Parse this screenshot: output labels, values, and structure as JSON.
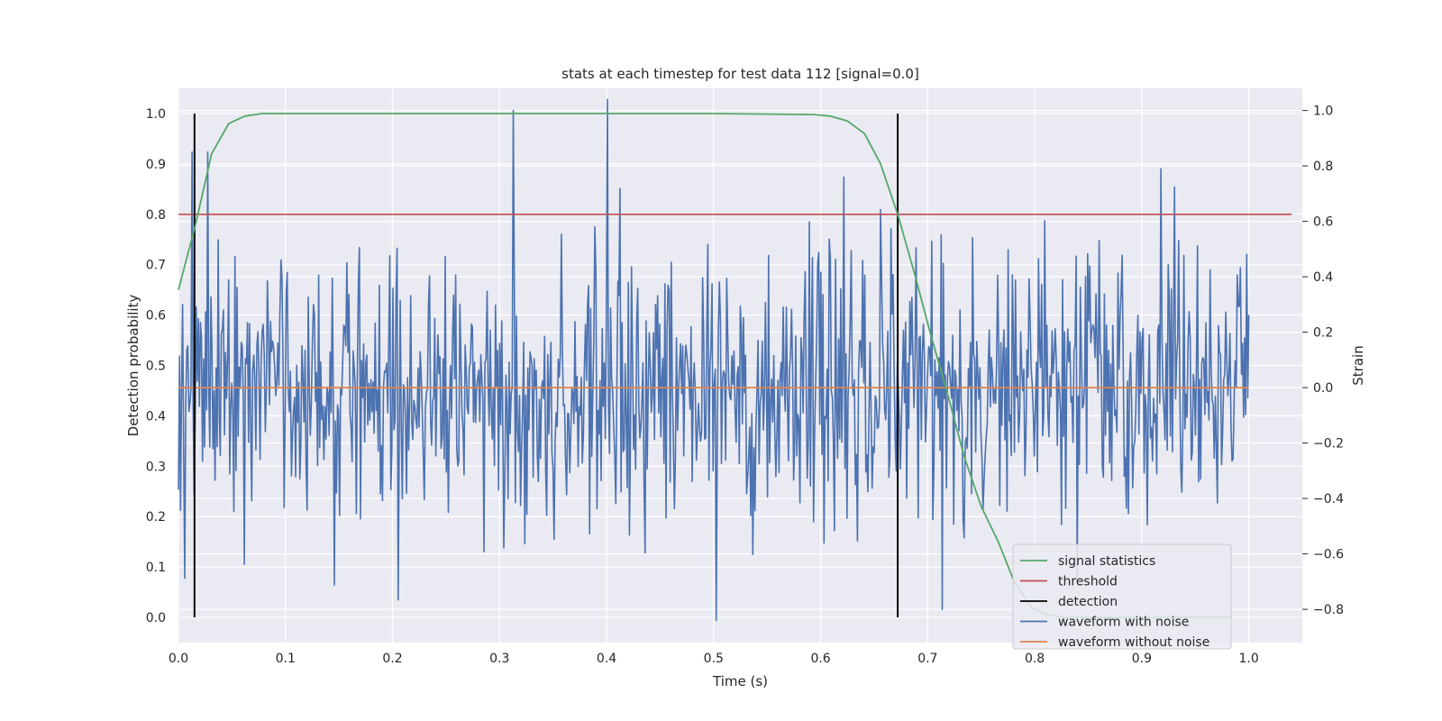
{
  "chart_data": {
    "type": "line",
    "title": "stats at each timestep for test data 112 [signal=0.0]",
    "xlabel": "Time (s)",
    "ylabel": "Detection probability",
    "ylabel_right": "Strain",
    "xlim": [
      0.0,
      1.05
    ],
    "ylim": [
      -0.05,
      1.05
    ],
    "ylim_right": [
      -0.92,
      1.08
    ],
    "x_ticks": [
      "0.0",
      "0.1",
      "0.2",
      "0.3",
      "0.4",
      "0.5",
      "0.6",
      "0.7",
      "0.8",
      "0.9",
      "1.0"
    ],
    "x_tick_values": [
      0.0,
      0.1,
      0.2,
      0.3,
      0.4,
      0.5,
      0.6,
      0.7,
      0.8,
      0.9,
      1.0
    ],
    "y_ticks": [
      "0.0",
      "0.1",
      "0.2",
      "0.3",
      "0.4",
      "0.5",
      "0.6",
      "0.7",
      "0.8",
      "0.9",
      "1.0"
    ],
    "y_tick_values": [
      0.0,
      0.1,
      0.2,
      0.3,
      0.4,
      0.5,
      0.6,
      0.7,
      0.8,
      0.9,
      1.0
    ],
    "y_right_ticks": [
      "1.0",
      "0.8",
      "0.6",
      "0.4",
      "0.2",
      "0.0",
      "−0.2",
      "−0.4",
      "−0.6",
      "−0.8"
    ],
    "y_right_tick_values": [
      1.0,
      0.8,
      0.6,
      0.4,
      0.2,
      0.0,
      -0.2,
      -0.4,
      -0.6,
      -0.8
    ],
    "grid": true,
    "legend_position": "bottom-right",
    "series": [
      {
        "name": "signal statistics",
        "color": "#55a868",
        "axis": "left",
        "x": [
          0.0,
          0.016,
          0.031,
          0.047,
          0.062,
          0.078,
          0.1,
          0.2,
          0.3,
          0.4,
          0.5,
          0.594,
          0.609,
          0.625,
          0.641,
          0.656,
          0.672,
          0.688,
          0.703,
          0.719,
          0.734,
          0.75,
          0.766,
          0.781,
          0.797,
          0.812,
          0.828,
          0.9,
          0.95,
          0.984
        ],
        "y": [
          0.65,
          0.78,
          0.92,
          0.98,
          0.995,
          1.0,
          1.0,
          1.0,
          1.0,
          1.0,
          1.0,
          0.998,
          0.995,
          0.985,
          0.96,
          0.9,
          0.8,
          0.68,
          0.56,
          0.44,
          0.32,
          0.22,
          0.15,
          0.07,
          0.02,
          0.005,
          0.0,
          0.0,
          0.0,
          0.0
        ]
      },
      {
        "name": "threshold",
        "color": "#c44e52",
        "axis": "left",
        "x": [
          0.0,
          1.04
        ],
        "y": [
          0.8,
          0.8
        ]
      },
      {
        "name": "detection",
        "color": "#000000",
        "axis": "left",
        "events_x": [
          0.015,
          0.672
        ],
        "y_range": [
          0.0,
          1.0
        ]
      },
      {
        "name": "waveform with noise",
        "color": "#4c72b0",
        "axis": "right",
        "x_range": [
          0.0,
          1.0
        ],
        "num_points": 1024,
        "amplitude_std": 0.25,
        "peaks_x": [
          0.013,
          0.027,
          0.313,
          0.401,
          0.502,
          0.622,
          0.918
        ],
        "peaks_y": [
          0.85,
          0.85,
          1.0,
          1.04,
          -0.84,
          0.76,
          0.79
        ]
      },
      {
        "name": "waveform without noise",
        "color": "#dd8452",
        "axis": "right",
        "x": [
          0.0,
          1.0
        ],
        "y": [
          0.0,
          0.0
        ]
      }
    ]
  }
}
